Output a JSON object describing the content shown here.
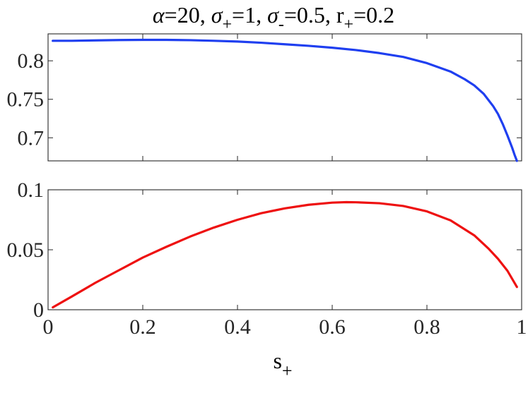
{
  "title": {
    "alpha_sym": "α",
    "alpha_eq": "=20, ",
    "sigma1_sym": "σ",
    "sigma1_sub": "+",
    "sigma1_eq": "=1, ",
    "sigma2_sym": "σ",
    "sigma2_sub": "-",
    "sigma2_eq": "=0.5, ",
    "r_base": "r",
    "r_sub": "+",
    "r_eq": "=0.2"
  },
  "xlabel": {
    "base": "s",
    "sub": "+"
  },
  "colors": {
    "top_series": "#1f3ff0",
    "bottom_series": "#ee1111",
    "axes": "#262626"
  },
  "chart_data": [
    {
      "type": "line",
      "panel": "top",
      "x": [
        0.01,
        0.05,
        0.1,
        0.15,
        0.2,
        0.25,
        0.3,
        0.35,
        0.4,
        0.45,
        0.5,
        0.55,
        0.6,
        0.65,
        0.7,
        0.75,
        0.8,
        0.85,
        0.88,
        0.9,
        0.92,
        0.94,
        0.95,
        0.96,
        0.97,
        0.98,
        0.985,
        0.99
      ],
      "series": [
        {
          "values": [
            0.826,
            0.826,
            0.8265,
            0.827,
            0.8272,
            0.8272,
            0.8268,
            0.826,
            0.825,
            0.8235,
            0.8215,
            0.8195,
            0.817,
            0.814,
            0.81,
            0.805,
            0.797,
            0.786,
            0.776,
            0.768,
            0.757,
            0.741,
            0.731,
            0.718,
            0.703,
            0.687,
            0.678,
            0.668
          ]
        }
      ],
      "xlim": [
        0,
        1
      ],
      "ylim": [
        0.67,
        0.835
      ],
      "yticks": [
        "0.7",
        "0.75",
        "0.8"
      ],
      "ytick_values": [
        0.7,
        0.75,
        0.8
      ],
      "xticks_labeled": false,
      "grid": false
    },
    {
      "type": "line",
      "panel": "bottom",
      "x": [
        0.01,
        0.05,
        0.1,
        0.15,
        0.2,
        0.25,
        0.3,
        0.35,
        0.4,
        0.45,
        0.5,
        0.55,
        0.6,
        0.63,
        0.65,
        0.7,
        0.75,
        0.8,
        0.85,
        0.9,
        0.93,
        0.95,
        0.97,
        0.99
      ],
      "series": [
        {
          "values": [
            0.002,
            0.011,
            0.0225,
            0.033,
            0.0435,
            0.0525,
            0.061,
            0.0685,
            0.075,
            0.0805,
            0.0845,
            0.0875,
            0.0893,
            0.0897,
            0.0896,
            0.0888,
            0.0865,
            0.082,
            0.0745,
            0.062,
            0.051,
            0.0425,
            0.0325,
            0.019
          ]
        }
      ],
      "xlim": [
        0,
        1
      ],
      "ylim": [
        0,
        0.1
      ],
      "yticks": [
        "0",
        "0.05",
        "0.1"
      ],
      "ytick_values": [
        0,
        0.05,
        0.1
      ],
      "xticks": [
        "0",
        "0.2",
        "0.4",
        "0.6",
        "0.8",
        "1"
      ],
      "xtick_values": [
        0,
        0.2,
        0.4,
        0.6,
        0.8,
        1
      ],
      "grid": false
    }
  ]
}
